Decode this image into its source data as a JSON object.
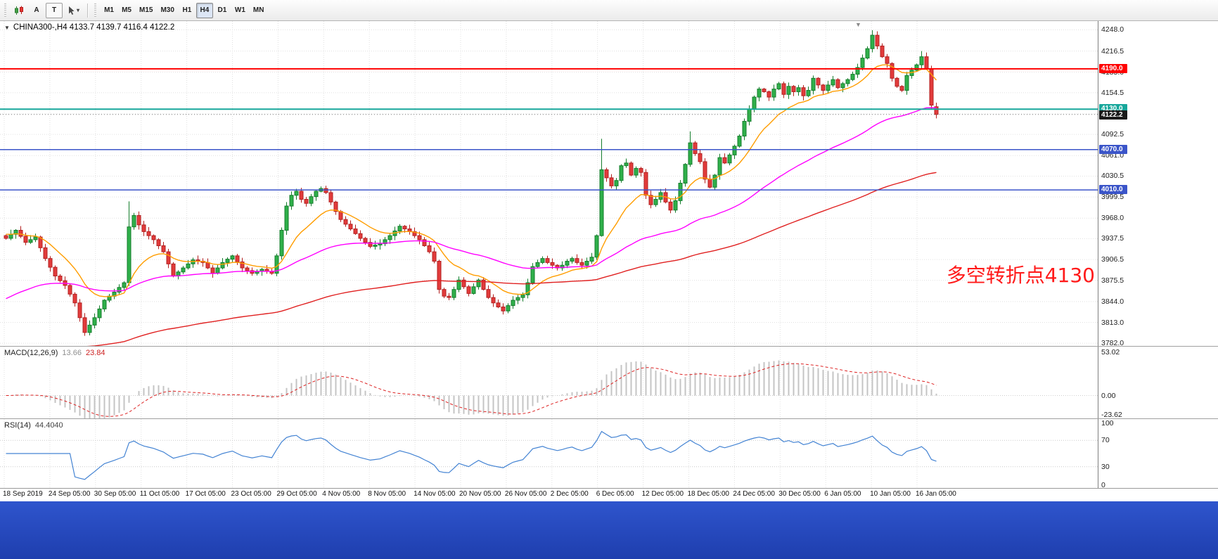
{
  "toolbar": {
    "button_a": "A",
    "button_t": "T",
    "timeframes": [
      "M1",
      "M5",
      "M15",
      "M30",
      "H1",
      "H4",
      "D1",
      "W1",
      "MN"
    ],
    "active_timeframe": "H4"
  },
  "main_chart": {
    "title_text": "CHINA300-,H4  4133.7 4139.7 4116.4 4122.2",
    "annotation": {
      "text": "多空转折点4130",
      "color": "#ff1a1a"
    },
    "price_axis": {
      "ticks": [
        "4248.0",
        "4216.5",
        "4185.0",
        "4154.5",
        "4123.0",
        "4092.5",
        "4061.0",
        "4030.5",
        "3999.5",
        "3968.0",
        "3937.5",
        "3906.5",
        "3875.5",
        "3844.0",
        "3813.0",
        "3782.0"
      ]
    },
    "hlines": [
      {
        "price": 4190.0,
        "label": "4190.0",
        "color": "#ff0000",
        "width": 2
      },
      {
        "price": 4130.0,
        "label": "4130.0",
        "color": "#17a79b",
        "width": 2
      },
      {
        "price": 4070.0,
        "label": "4070.0",
        "color": "#3b55c9",
        "width": 1.5
      },
      {
        "price": 4010.0,
        "label": "4010.0",
        "color": "#3b55c9",
        "width": 1.5
      }
    ],
    "current_price": {
      "price": 4122.2,
      "label": "4122.2"
    }
  },
  "chart_data": {
    "type": "candlestick",
    "symbol": "CHINA300-",
    "timeframe": "H4",
    "last_bar": {
      "open": 4133.7,
      "high": 4139.7,
      "low": 4116.4,
      "close": 4122.2
    },
    "view": {
      "price_min": 3778,
      "price_max": 4261
    },
    "num_candles": 190,
    "close_anchors": [
      [
        0,
        3938
      ],
      [
        2,
        3950
      ],
      [
        4,
        3932
      ],
      [
        6,
        3940
      ],
      [
        8,
        3908
      ],
      [
        10,
        3882
      ],
      [
        12,
        3868
      ],
      [
        14,
        3842
      ],
      [
        16,
        3798
      ],
      [
        18,
        3820
      ],
      [
        20,
        3846
      ],
      [
        22,
        3858
      ],
      [
        24,
        3872
      ],
      [
        25,
        3955
      ],
      [
        26,
        3972
      ],
      [
        27,
        3958
      ],
      [
        28,
        3948
      ],
      [
        30,
        3936
      ],
      [
        32,
        3918
      ],
      [
        34,
        3882
      ],
      [
        36,
        3894
      ],
      [
        38,
        3906
      ],
      [
        40,
        3902
      ],
      [
        42,
        3886
      ],
      [
        44,
        3902
      ],
      [
        46,
        3912
      ],
      [
        48,
        3894
      ],
      [
        50,
        3886
      ],
      [
        52,
        3892
      ],
      [
        54,
        3886
      ],
      [
        55,
        3912
      ],
      [
        56,
        3950
      ],
      [
        57,
        3986
      ],
      [
        58,
        4002
      ],
      [
        59,
        4008
      ],
      [
        60,
        3996
      ],
      [
        61,
        3990
      ],
      [
        62,
        4000
      ],
      [
        63,
        4008
      ],
      [
        64,
        4012
      ],
      [
        65,
        4006
      ],
      [
        66,
        3992
      ],
      [
        67,
        3978
      ],
      [
        68,
        3966
      ],
      [
        70,
        3952
      ],
      [
        72,
        3938
      ],
      [
        74,
        3926
      ],
      [
        76,
        3930
      ],
      [
        78,
        3942
      ],
      [
        80,
        3956
      ],
      [
        82,
        3948
      ],
      [
        84,
        3936
      ],
      [
        86,
        3918
      ],
      [
        87,
        3904
      ],
      [
        88,
        3862
      ],
      [
        89,
        3852
      ],
      [
        90,
        3850
      ],
      [
        91,
        3862
      ],
      [
        92,
        3876
      ],
      [
        93,
        3866
      ],
      [
        94,
        3856
      ],
      [
        95,
        3866
      ],
      [
        96,
        3876
      ],
      [
        97,
        3862
      ],
      [
        98,
        3850
      ],
      [
        99,
        3842
      ],
      [
        100,
        3836
      ],
      [
        101,
        3830
      ],
      [
        102,
        3838
      ],
      [
        103,
        3846
      ],
      [
        104,
        3850
      ],
      [
        105,
        3854
      ],
      [
        106,
        3872
      ],
      [
        107,
        3896
      ],
      [
        108,
        3902
      ],
      [
        109,
        3908
      ],
      [
        110,
        3902
      ],
      [
        111,
        3898
      ],
      [
        112,
        3894
      ],
      [
        113,
        3898
      ],
      [
        114,
        3904
      ],
      [
        115,
        3908
      ],
      [
        116,
        3902
      ],
      [
        117,
        3898
      ],
      [
        118,
        3904
      ],
      [
        119,
        3910
      ],
      [
        120,
        3942
      ],
      [
        121,
        4040
      ],
      [
        122,
        4028
      ],
      [
        123,
        4016
      ],
      [
        124,
        4024
      ],
      [
        125,
        4046
      ],
      [
        126,
        4050
      ],
      [
        127,
        4032
      ],
      [
        128,
        4042
      ],
      [
        129,
        4036
      ],
      [
        130,
        4002
      ],
      [
        131,
        3988
      ],
      [
        132,
        3996
      ],
      [
        133,
        4006
      ],
      [
        134,
        3992
      ],
      [
        135,
        3980
      ],
      [
        136,
        3994
      ],
      [
        137,
        4020
      ],
      [
        138,
        4048
      ],
      [
        139,
        4080
      ],
      [
        140,
        4064
      ],
      [
        141,
        4052
      ],
      [
        142,
        4026
      ],
      [
        143,
        4014
      ],
      [
        144,
        4032
      ],
      [
        145,
        4058
      ],
      [
        146,
        4050
      ],
      [
        147,
        4062
      ],
      [
        148,
        4075
      ],
      [
        149,
        4090
      ],
      [
        150,
        4112
      ],
      [
        151,
        4130
      ],
      [
        152,
        4148
      ],
      [
        153,
        4160
      ],
      [
        154,
        4156
      ],
      [
        155,
        4148
      ],
      [
        156,
        4160
      ],
      [
        157,
        4168
      ],
      [
        158,
        4152
      ],
      [
        159,
        4164
      ],
      [
        160,
        4156
      ],
      [
        161,
        4162
      ],
      [
        162,
        4150
      ],
      [
        163,
        4158
      ],
      [
        164,
        4176
      ],
      [
        165,
        4166
      ],
      [
        166,
        4158
      ],
      [
        167,
        4166
      ],
      [
        168,
        4174
      ],
      [
        169,
        4162
      ],
      [
        170,
        4168
      ],
      [
        171,
        4174
      ],
      [
        172,
        4182
      ],
      [
        173,
        4192
      ],
      [
        174,
        4206
      ],
      [
        175,
        4220
      ],
      [
        176,
        4240
      ],
      [
        177,
        4224
      ],
      [
        178,
        4208
      ],
      [
        179,
        4198
      ],
      [
        180,
        4176
      ],
      [
        181,
        4164
      ],
      [
        182,
        4158
      ],
      [
        183,
        4180
      ],
      [
        184,
        4188
      ],
      [
        185,
        4196
      ],
      [
        186,
        4208
      ],
      [
        187,
        4190
      ],
      [
        188,
        4136
      ],
      [
        189,
        4122.2
      ]
    ],
    "wick_overrides": {
      "16": {
        "low": 3793
      },
      "25": {
        "high": 3993
      },
      "121": {
        "high": 4086
      },
      "139": {
        "high": 4097
      },
      "176": {
        "high": 4247.5
      },
      "186": {
        "high": 4216.5
      },
      "189": {
        "open": 4133.7,
        "high": 4139.7,
        "low": 4116.4,
        "close": 4122.2
      }
    },
    "moving_averages": [
      {
        "name": "fast-ma",
        "period": 13,
        "seed": 3945,
        "color": "#ff9d00"
      },
      {
        "name": "mid-ma",
        "period": 55,
        "seed": 3845,
        "color": "#ff00ff"
      },
      {
        "name": "slow-ma",
        "period": 140,
        "seed": 3745,
        "color": "#e02020"
      }
    ],
    "indicators": {
      "macd": {
        "fast": 12,
        "slow": 26,
        "signal": 9,
        "value_main": 13.66,
        "value_signal": 23.84
      },
      "rsi": {
        "period": 14,
        "value": 44.404
      }
    }
  },
  "macd_panel": {
    "name": "MACD(12,26,9)",
    "value_main": "13.66",
    "value_signal": "23.84",
    "ticks": [
      "53.02",
      "0.00",
      "-23.62"
    ],
    "range": [
      -28,
      60
    ]
  },
  "rsi_panel": {
    "name": "RSI(14)",
    "value": "44.4040",
    "ticks": [
      "100",
      "70",
      "30",
      "0"
    ],
    "levels": [
      70,
      30
    ]
  },
  "time_axis": {
    "labels": [
      "18 Sep 2019",
      "24 Sep 05:00",
      "30 Sep 05:00",
      "11 Oct 05:00",
      "17 Oct 05:00",
      "23 Oct 05:00",
      "29 Oct 05:00",
      "4 Nov 05:00",
      "8 Nov 05:00",
      "14 Nov 05:00",
      "20 Nov 05:00",
      "26 Nov 05:00",
      "2 Dec 05:00",
      "6 Dec 05:00",
      "12 Dec 05:00",
      "18 Dec 05:00",
      "24 Dec 05:00",
      "30 Dec 05:00",
      "6 Jan 05:00",
      "10 Jan 05:00",
      "16 Jan 05:00"
    ]
  },
  "colors": {
    "up": "#2fb04a",
    "up_border": "#157d2c",
    "down": "#e23b3b",
    "down_border": "#b32020",
    "grid": "#e0e0e0",
    "bid_label_bg": "#1a1a1a",
    "macd_hist": "#c4c4c4",
    "macd_signal": "#dd2222",
    "rsi_line": "#4383d3",
    "taskbar_top": "#2f55cd",
    "taskbar_bottom": "#1e3eae"
  }
}
